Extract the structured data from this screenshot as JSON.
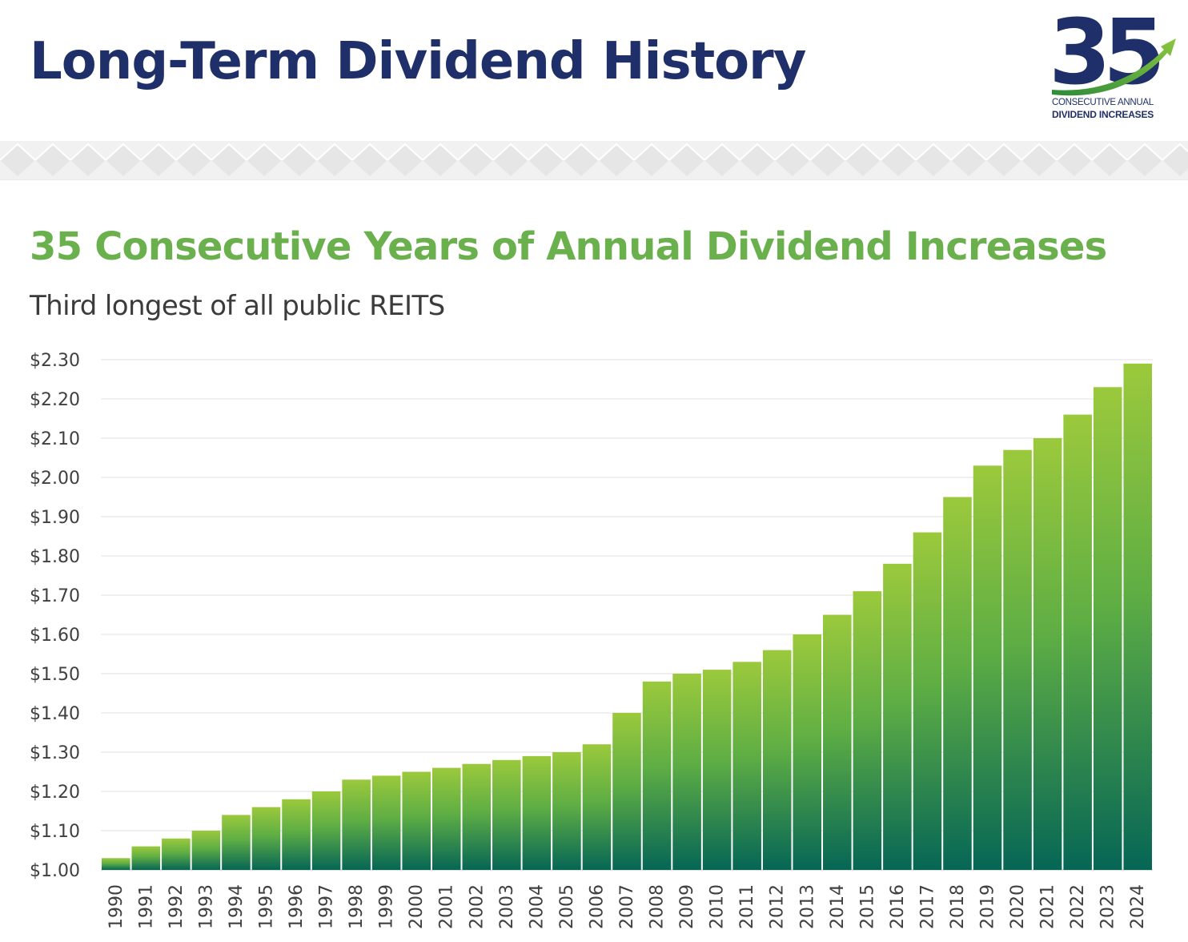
{
  "header": {
    "title": "Long-Term Dividend History",
    "logo": {
      "numeral": "35",
      "caption_line1": "CONSECUTIVE ANNUAL",
      "caption_line2": "DIVIDEND INCREASES",
      "icon": "rising-arrow-icon"
    }
  },
  "colors": {
    "title": "#1f2f69",
    "subtitle": "#6ab04c",
    "bar_top": "#9bc93c",
    "bar_bottom": "#066655"
  },
  "chart_data": {
    "type": "bar",
    "title": "35 Consecutive Years of Annual Dividend Increases",
    "subtitle": "Third longest of all public REITS",
    "xlabel": "",
    "ylabel": "",
    "ylim": [
      1.0,
      2.3
    ],
    "y_ticks": [
      "$1.00",
      "$1.10",
      "$1.20",
      "$1.30",
      "$1.40",
      "$1.50",
      "$1.60",
      "$1.70",
      "$1.80",
      "$1.90",
      "$2.00",
      "$2.10",
      "$2.20",
      "$2.30"
    ],
    "grid": true,
    "legend": "none",
    "categories": [
      "1990",
      "1991",
      "1992",
      "1993",
      "1994",
      "1995",
      "1996",
      "1997",
      "1998",
      "1999",
      "2000",
      "2001",
      "2002",
      "2003",
      "2004",
      "2005",
      "2006",
      "2007",
      "2008",
      "2009",
      "2010",
      "2011",
      "2012",
      "2013",
      "2014",
      "2015",
      "2016",
      "2017",
      "2018",
      "2019",
      "2020",
      "2021",
      "2022",
      "2023",
      "2024"
    ],
    "values": [
      1.03,
      1.06,
      1.08,
      1.1,
      1.14,
      1.16,
      1.18,
      1.2,
      1.23,
      1.24,
      1.25,
      1.26,
      1.27,
      1.28,
      1.29,
      1.3,
      1.32,
      1.4,
      1.48,
      1.5,
      1.51,
      1.53,
      1.56,
      1.6,
      1.65,
      1.71,
      1.78,
      1.86,
      1.95,
      2.03,
      2.07,
      2.1,
      2.16,
      2.23,
      2.29
    ]
  }
}
